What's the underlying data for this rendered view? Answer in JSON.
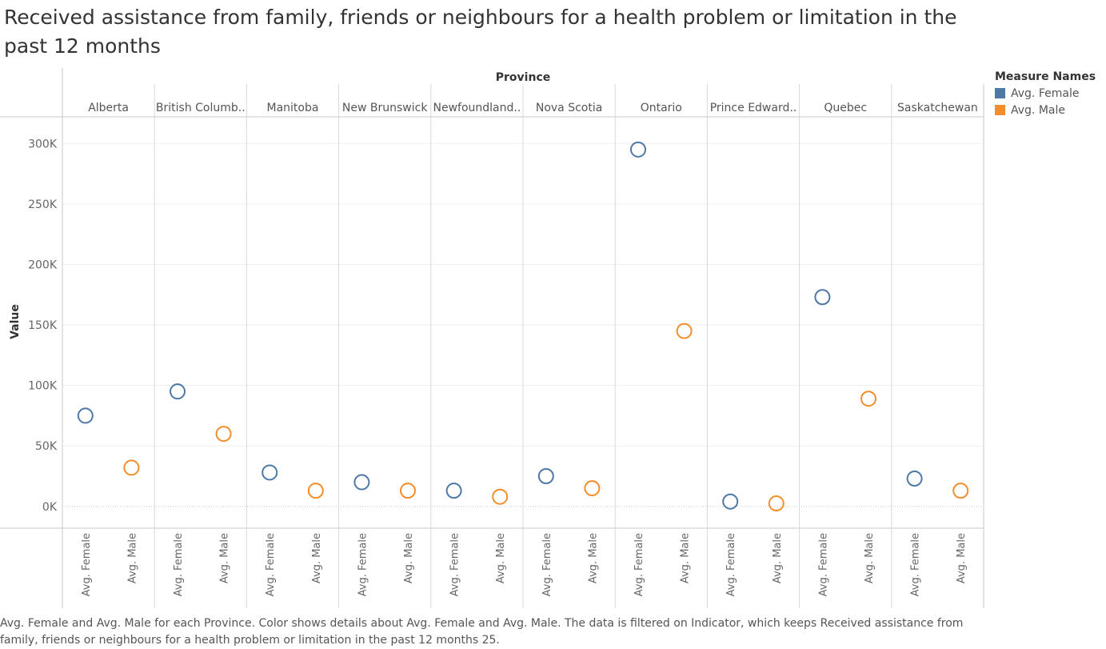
{
  "title": "Received assistance from family, friends or neighbours for a health problem or limitation in the past 12 months",
  "caption": "Avg. Female and Avg. Male for each Province.  Color shows details about Avg. Female and Avg. Male. The data is filtered on Indicator, which keeps Received assistance from family, friends or neighbours for a health problem or limitation in the past 12 months 25.",
  "legend": {
    "title": "Measure Names",
    "items": [
      {
        "label": "Avg. Female",
        "color": "#4e79a7"
      },
      {
        "label": "Avg. Male",
        "color": "#f28e2b"
      }
    ]
  },
  "chart_data": {
    "type": "scatter",
    "column_header": "Province",
    "ylabel": "Value",
    "ylim": [
      -18000,
      322000
    ],
    "yticks": [
      0,
      50000,
      100000,
      150000,
      200000,
      250000,
      300000
    ],
    "ytick_labels": [
      "0K",
      "50K",
      "100K",
      "150K",
      "200K",
      "250K",
      "300K"
    ],
    "categories": [
      "Alberta",
      "British Columb..",
      "Manitoba",
      "New Brunswick",
      "Newfoundland..",
      "Nova Scotia",
      "Ontario",
      "Prince Edward..",
      "Quebec",
      "Saskatchewan"
    ],
    "series": [
      {
        "name": "Avg. Female",
        "color": "#4e79a7",
        "values": [
          75000,
          95000,
          28000,
          20000,
          13000,
          25000,
          295000,
          4000,
          173000,
          23000
        ]
      },
      {
        "name": "Avg. Male",
        "color": "#f28e2b",
        "values": [
          32000,
          60000,
          13000,
          13000,
          8000,
          15000,
          145000,
          2500,
          89000,
          13000
        ]
      }
    ],
    "grid": true,
    "legend_position": "right"
  }
}
